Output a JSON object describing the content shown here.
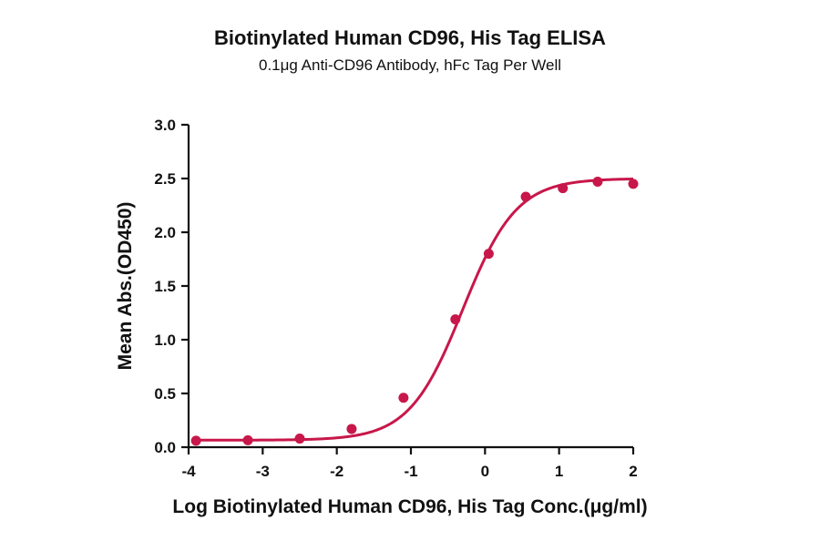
{
  "chart_data": {
    "type": "scatter",
    "title": "Biotinylated Human CD96, His Tag ELISA",
    "subtitle": "0.1μg Anti-CD96 Antibody, hFc Tag Per Well",
    "xlabel": "Log Biotinylated Human CD96, His Tag Conc.(μg/ml)",
    "ylabel": "Mean Abs.(OD450)",
    "xlim": [
      -4,
      2
    ],
    "ylim": [
      0,
      3
    ],
    "x_ticks": [
      -4,
      -3,
      -2,
      -1,
      0,
      1,
      2
    ],
    "y_ticks": [
      0.0,
      0.5,
      1.0,
      1.5,
      2.0,
      2.5,
      3.0
    ],
    "x_tick_labels": [
      "-4",
      "-3",
      "-2",
      "-1",
      "0",
      "1",
      "2"
    ],
    "y_tick_labels": [
      "0.0",
      "0.5",
      "1.0",
      "1.5",
      "2.0",
      "2.5",
      "3.0"
    ],
    "grid": false,
    "color": "#c8174a",
    "series": [
      {
        "points": {
          "x": [
            -3.9,
            -3.2,
            -2.5,
            -1.8,
            -1.1,
            -0.4,
            0.05,
            0.55,
            1.05,
            1.52,
            2.0
          ],
          "y": [
            0.06,
            0.065,
            0.08,
            0.17,
            0.46,
            1.19,
            1.8,
            2.33,
            2.41,
            2.47,
            2.45
          ]
        },
        "fit": {
          "model": "4PL",
          "bottom": 0.065,
          "top": 2.5,
          "log_ec50": -0.3,
          "hill": 1.2,
          "x_range": [
            -3.9,
            2.0
          ]
        }
      }
    ]
  }
}
